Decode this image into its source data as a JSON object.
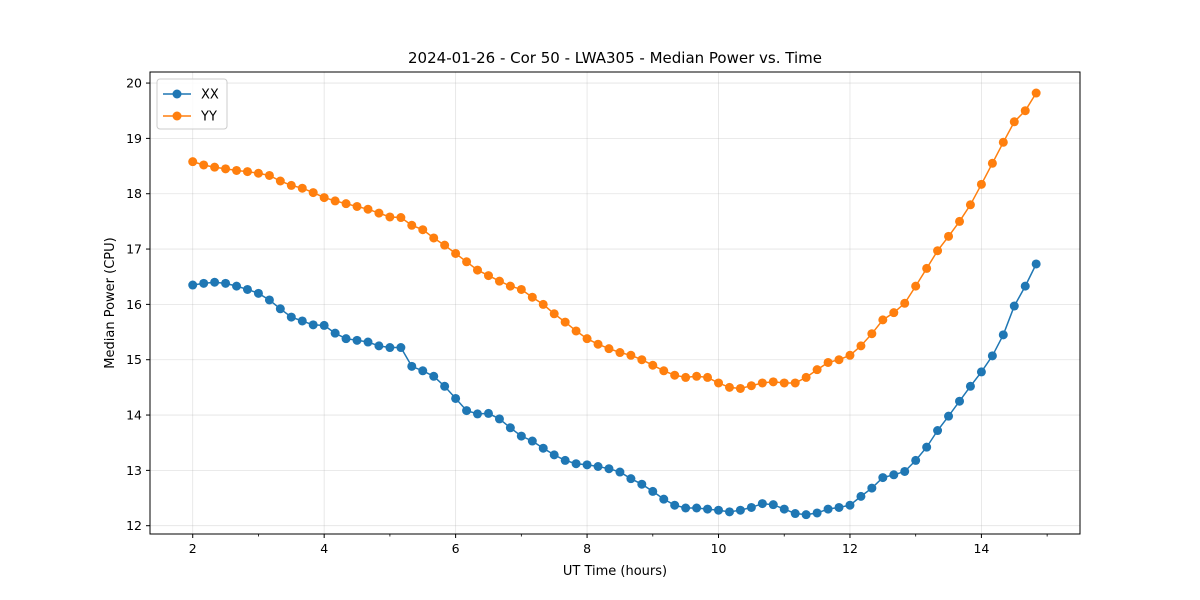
{
  "chart_data": {
    "type": "line",
    "title": "2024-01-26 - Cor 50 - LWA305 - Median Power vs. Time",
    "xlabel": "UT Time (hours)",
    "ylabel": "Median Power (CPU)",
    "xlim": [
      1.35,
      15.5
    ],
    "ylim": [
      11.85,
      20.2
    ],
    "xticks": [
      2,
      4,
      6,
      8,
      10,
      12,
      14
    ],
    "yticks": [
      12,
      13,
      14,
      15,
      16,
      17,
      18,
      19,
      20
    ],
    "grid": true,
    "legend_position": "upper-left",
    "x": [
      2.0,
      2.167,
      2.333,
      2.5,
      2.667,
      2.833,
      3.0,
      3.167,
      3.333,
      3.5,
      3.667,
      3.833,
      4.0,
      4.167,
      4.333,
      4.5,
      4.667,
      4.833,
      5.0,
      5.167,
      5.333,
      5.5,
      5.667,
      5.833,
      6.0,
      6.167,
      6.333,
      6.5,
      6.667,
      6.833,
      7.0,
      7.167,
      7.333,
      7.5,
      7.667,
      7.833,
      8.0,
      8.167,
      8.333,
      8.5,
      8.667,
      8.833,
      9.0,
      9.167,
      9.333,
      9.5,
      9.667,
      9.833,
      10.0,
      10.167,
      10.333,
      10.5,
      10.667,
      10.833,
      11.0,
      11.167,
      11.333,
      11.5,
      11.667,
      11.833,
      12.0,
      12.167,
      12.333,
      12.5,
      12.667,
      12.833,
      13.0,
      13.167,
      13.333,
      13.5,
      13.667,
      13.833,
      14.0,
      14.167,
      14.333,
      14.5,
      14.667,
      14.833
    ],
    "series": [
      {
        "name": "XX",
        "color": "#1f77b4",
        "values": [
          16.35,
          16.38,
          16.4,
          16.38,
          16.33,
          16.27,
          16.2,
          16.08,
          15.92,
          15.77,
          15.7,
          15.63,
          15.62,
          15.48,
          15.38,
          15.35,
          15.32,
          15.25,
          15.22,
          15.22,
          14.88,
          14.8,
          14.7,
          14.52,
          14.3,
          14.08,
          14.02,
          14.03,
          13.93,
          13.77,
          13.62,
          13.53,
          13.4,
          13.28,
          13.18,
          13.12,
          13.1,
          13.07,
          13.03,
          12.97,
          12.85,
          12.75,
          12.62,
          12.48,
          12.37,
          12.32,
          12.32,
          12.3,
          12.28,
          12.25,
          12.28,
          12.33,
          12.4,
          12.38,
          12.3,
          12.22,
          12.2,
          12.23,
          12.3,
          12.33,
          12.37,
          12.53,
          12.68,
          12.87,
          12.92,
          12.98,
          13.18,
          13.42,
          13.72,
          13.98,
          14.25,
          14.52,
          14.78,
          15.07,
          15.45,
          15.97,
          16.33,
          16.73
        ]
      },
      {
        "name": "YY",
        "color": "#ff7f0e",
        "values": [
          18.58,
          18.52,
          18.48,
          18.45,
          18.42,
          18.4,
          18.37,
          18.33,
          18.23,
          18.15,
          18.1,
          18.02,
          17.93,
          17.87,
          17.82,
          17.77,
          17.72,
          17.65,
          17.58,
          17.57,
          17.43,
          17.35,
          17.2,
          17.07,
          16.92,
          16.77,
          16.62,
          16.52,
          16.42,
          16.33,
          16.27,
          16.13,
          16.0,
          15.83,
          15.68,
          15.52,
          15.38,
          15.28,
          15.2,
          15.13,
          15.08,
          15.0,
          14.9,
          14.8,
          14.72,
          14.68,
          14.7,
          14.68,
          14.58,
          14.5,
          14.48,
          14.53,
          14.58,
          14.6,
          14.58,
          14.58,
          14.68,
          14.82,
          14.95,
          15.0,
          15.08,
          15.25,
          15.47,
          15.72,
          15.85,
          16.02,
          16.33,
          16.65,
          16.97,
          17.23,
          17.5,
          17.8,
          18.17,
          18.55,
          18.93,
          19.3,
          19.5,
          19.82
        ]
      }
    ]
  }
}
